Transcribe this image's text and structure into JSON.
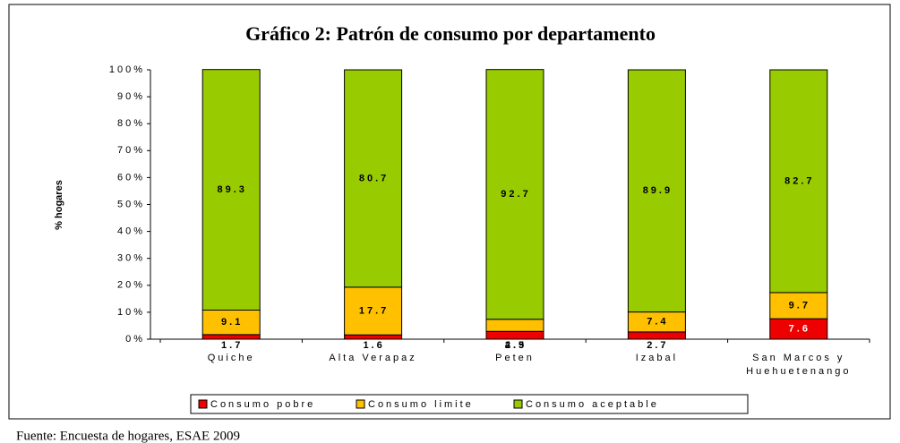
{
  "chart_data": {
    "type": "stacked_bar",
    "title": "Gráfico 2: Patrón de consumo por departamento",
    "ylabel": "% hogares",
    "source": "Fuente: Encuesta de hogares, ESAE 2009",
    "categories": [
      "Quiche",
      "Alta Verapaz",
      "Peten",
      "Izabal",
      "San Marcos y Huehuetenango"
    ],
    "series": [
      {
        "name": "Consumo pobre",
        "color": "#ee0000",
        "values": [
          1.7,
          1.6,
          2.9,
          2.7,
          7.6
        ]
      },
      {
        "name": "Consumo limite",
        "color": "#ffc000",
        "values": [
          9.1,
          17.7,
          4.5,
          7.4,
          9.7
        ]
      },
      {
        "name": "Consumo aceptable",
        "color": "#99cc00",
        "values": [
          89.3,
          80.7,
          92.7,
          89.9,
          82.7
        ]
      }
    ],
    "ylim": [
      0,
      100
    ],
    "yticks": [
      {
        "value": 0,
        "label": "0%"
      },
      {
        "value": 10,
        "label": "10%"
      },
      {
        "value": 20,
        "label": "20%"
      },
      {
        "value": 30,
        "label": "30%"
      },
      {
        "value": 40,
        "label": "40%"
      },
      {
        "value": 50,
        "label": "50%"
      },
      {
        "value": 60,
        "label": "60%"
      },
      {
        "value": 70,
        "label": "70%"
      },
      {
        "value": 80,
        "label": "80%"
      },
      {
        "value": 90,
        "label": "90%"
      },
      {
        "value": 100,
        "label": "100%"
      }
    ],
    "legend": "bottom"
  }
}
